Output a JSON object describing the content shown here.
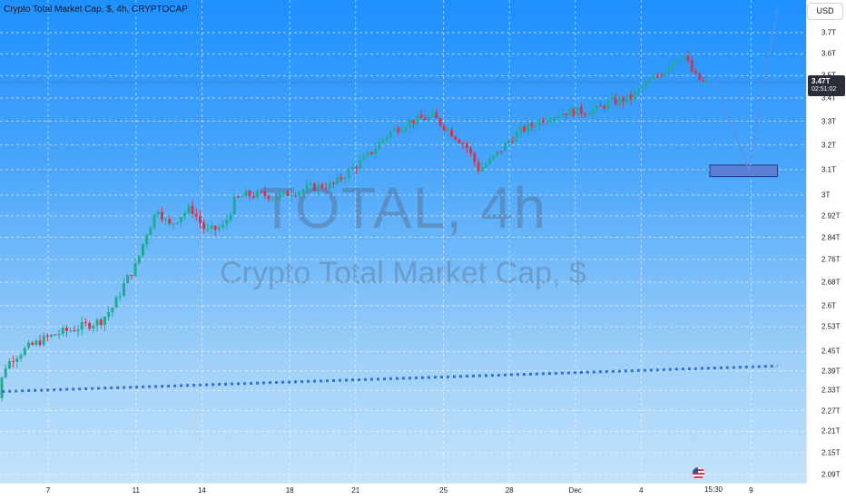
{
  "header": {
    "title": "Crypto Total Market Cap, $, 4h, CRYPTOCAP",
    "currency_button": "USD"
  },
  "watermark": {
    "line1": "TOTAL, 4h",
    "line2": "Crypto Total Market Cap, $"
  },
  "price_marker": {
    "value": "3.47T",
    "countdown": "02:51:02",
    "time_label": "15:30"
  },
  "colors": {
    "up": "#22ab94",
    "down": "#d5344d",
    "dotted_line": "#2f6fd6",
    "zone_fill": "#5b7fd4",
    "projection": "#5d8fd8",
    "price_line": "#50627a"
  },
  "icons": {
    "event_flag": "us-flag-icon"
  },
  "chart_data": {
    "type": "candlestick",
    "title": "Crypto Total Market Cap, $, 4h, CRYPTOCAP",
    "y_unit": "USD trillions",
    "ylim": [
      2.07,
      3.82
    ],
    "yticks": [
      "3.7T",
      "3.6T",
      "3.5T",
      "3.4T",
      "3.3T",
      "3.2T",
      "3.1T",
      "3T",
      "2.92T",
      "2.84T",
      "2.76T",
      "2.68T",
      "2.6T",
      "2.53T",
      "2.45T",
      "2.39T",
      "2.33T",
      "2.27T",
      "2.21T",
      "2.15T",
      "2.09T"
    ],
    "ytick_values": [
      3.7,
      3.6,
      3.5,
      3.4,
      3.3,
      3.2,
      3.1,
      3.0,
      2.92,
      2.84,
      2.76,
      2.68,
      2.6,
      2.53,
      2.45,
      2.39,
      2.33,
      2.27,
      2.21,
      2.15,
      2.09
    ],
    "xticks": [
      "7",
      "11",
      "14",
      "18",
      "21",
      "25",
      "28",
      "Dec",
      "4",
      "9"
    ],
    "xtick_days": [
      7,
      11,
      14,
      18,
      21,
      25,
      28,
      31,
      34,
      39
    ],
    "x_unit_note": "day of November (Dec = 31)",
    "price_anchors": [
      [
        4.2,
        2.21
      ],
      [
        4.6,
        2.27
      ],
      [
        5.0,
        2.4
      ],
      [
        5.4,
        2.43
      ],
      [
        6.0,
        2.46
      ],
      [
        6.8,
        2.49
      ],
      [
        7.5,
        2.51
      ],
      [
        8.5,
        2.53
      ],
      [
        9.4,
        2.55
      ],
      [
        10.0,
        2.6
      ],
      [
        10.5,
        2.68
      ],
      [
        11.0,
        2.74
      ],
      [
        11.5,
        2.86
      ],
      [
        12.0,
        2.95
      ],
      [
        12.5,
        2.88
      ],
      [
        13.0,
        2.92
      ],
      [
        13.5,
        2.95
      ],
      [
        14.2,
        2.86
      ],
      [
        15.0,
        2.88
      ],
      [
        15.5,
        2.98
      ],
      [
        16.0,
        3.0
      ],
      [
        17.0,
        3.0
      ],
      [
        17.5,
        2.99
      ],
      [
        18.0,
        3.01
      ],
      [
        19.0,
        3.03
      ],
      [
        20.0,
        3.04
      ],
      [
        20.5,
        3.08
      ],
      [
        21.5,
        3.15
      ],
      [
        22.5,
        3.25
      ],
      [
        23.5,
        3.3
      ],
      [
        24.5,
        3.32
      ],
      [
        25.0,
        3.28
      ],
      [
        25.5,
        3.24
      ],
      [
        26.0,
        3.2
      ],
      [
        26.6,
        3.1
      ],
      [
        27.2,
        3.14
      ],
      [
        28.0,
        3.22
      ],
      [
        28.5,
        3.26
      ],
      [
        29.0,
        3.28
      ],
      [
        29.5,
        3.31
      ],
      [
        30.5,
        3.34
      ],
      [
        31.0,
        3.34
      ],
      [
        32.0,
        3.35
      ],
      [
        32.5,
        3.38
      ],
      [
        33.5,
        3.4
      ],
      [
        34.2,
        3.46
      ],
      [
        35.0,
        3.52
      ],
      [
        35.5,
        3.58
      ],
      [
        35.9,
        3.6
      ],
      [
        36.4,
        3.5
      ],
      [
        36.8,
        3.47
      ],
      [
        37.0,
        3.47
      ]
    ],
    "candle_start_day": 4.2,
    "candle_end_day": 37.0,
    "candle_count": 190,
    "current_price": 3.47,
    "support_zone": {
      "day_start": 37.0,
      "day_end": 40.2,
      "low": 3.072,
      "high": 3.118
    },
    "trendline": {
      "points": [
        [
          4.2,
          2.325
        ],
        [
          40.2,
          2.405
        ]
      ]
    },
    "projection": {
      "points": [
        [
          37.4,
          3.47
        ],
        [
          38.9,
          3.1
        ],
        [
          40.2,
          3.82
        ]
      ]
    }
  }
}
